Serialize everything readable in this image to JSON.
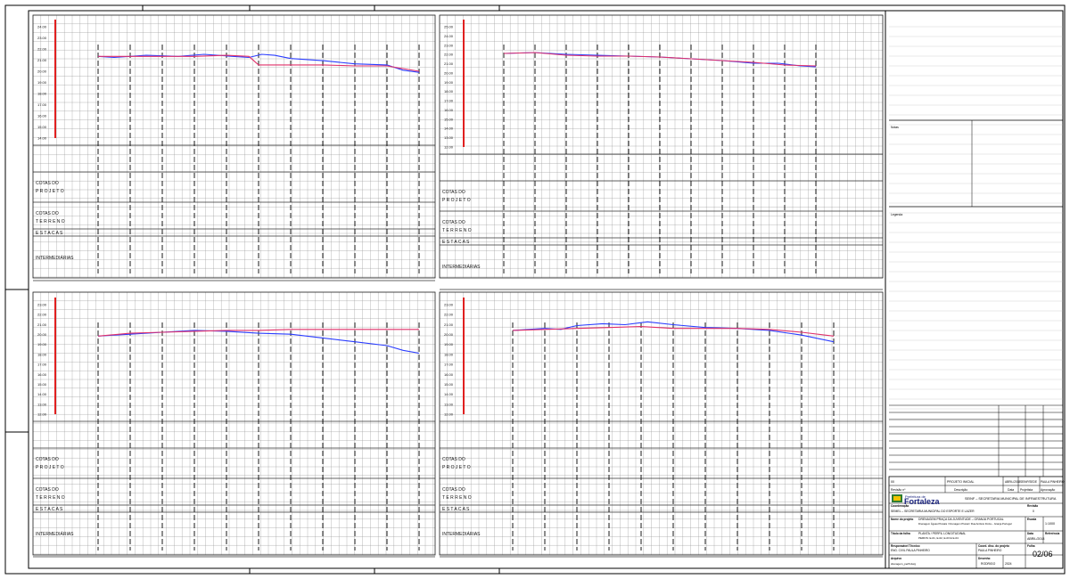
{
  "profile_labels": {
    "cotas_projeto": [
      "COTAS DO",
      "P R O J E T O"
    ],
    "cotas_terreno": [
      "COTAS DO",
      "T E R R E N O"
    ],
    "estacas": "E S T A C A S",
    "intermediarias": "INTERMEDIÁRIAS"
  },
  "elevation_ticks": {
    "top_left": [
      "24.00",
      "23.00",
      "22.00",
      "21.00",
      "20.00",
      "19.00",
      "18.00",
      "17.00",
      "16.00",
      "15.00",
      "14.00"
    ],
    "top_right": [
      "25.00",
      "24.00",
      "23.00",
      "22.00",
      "21.00",
      "20.00",
      "19.00",
      "18.00",
      "17.00",
      "16.00",
      "15.00",
      "14.00",
      "13.00",
      "12.00"
    ],
    "bottom_left": [
      "23.00",
      "22.00",
      "21.00",
      "20.00",
      "19.00",
      "18.00",
      "17.00",
      "16.00",
      "15.00",
      "14.00",
      "13.00",
      "12.00"
    ],
    "bottom_right": [
      "23.00",
      "22.00",
      "21.00",
      "20.00",
      "19.00",
      "18.00",
      "17.00",
      "16.00",
      "15.00",
      "14.00",
      "13.00",
      "12.00"
    ]
  },
  "chart_data": [
    {
      "type": "line",
      "panel": "top_left",
      "ylim": [
        14,
        24.5
      ],
      "series": [
        {
          "color": "#2a3cff",
          "x": [
            0,
            0.05,
            0.15,
            0.25,
            0.33,
            0.42,
            0.47,
            0.51,
            0.55,
            0.6,
            0.7,
            0.8,
            0.9,
            0.95,
            1.0
          ],
          "values": [
            21.7,
            21.6,
            21.8,
            21.7,
            21.9,
            21.7,
            21.6,
            21.9,
            21.8,
            21.5,
            21.3,
            21.0,
            20.9,
            20.4,
            20.2
          ]
        },
        {
          "color": "#e0306a",
          "x": [
            0,
            0.1,
            0.2,
            0.3,
            0.4,
            0.47,
            0.5,
            0.6,
            0.7,
            0.8,
            0.9,
            1.0
          ],
          "values": [
            21.7,
            21.7,
            21.7,
            21.7,
            21.8,
            21.7,
            20.9,
            20.9,
            20.9,
            20.8,
            20.8,
            20.3
          ]
        }
      ]
    },
    {
      "type": "line",
      "panel": "top_right",
      "ylim": [
        12,
        25.5
      ],
      "series": [
        {
          "color": "#2a3cff",
          "x": [
            0,
            0.1,
            0.2,
            0.3,
            0.4,
            0.5,
            0.6,
            0.7,
            0.8,
            0.88,
            0.95,
            1.0
          ],
          "values": [
            22.5,
            22.6,
            22.4,
            22.3,
            22.2,
            22.1,
            21.9,
            21.7,
            21.4,
            21.4,
            21.1,
            21.0
          ]
        },
        {
          "color": "#e0306a",
          "x": [
            0,
            0.1,
            0.2,
            0.3,
            0.4,
            0.5,
            0.6,
            0.7,
            0.8,
            0.9,
            1.0
          ],
          "values": [
            22.5,
            22.6,
            22.3,
            22.2,
            22.2,
            22.1,
            21.9,
            21.7,
            21.5,
            21.2,
            21.1
          ]
        }
      ]
    },
    {
      "type": "line",
      "panel": "bottom_left",
      "ylim": [
        12,
        23.5
      ],
      "series": [
        {
          "color": "#2a3cff",
          "x": [
            0,
            0.1,
            0.2,
            0.3,
            0.4,
            0.5,
            0.6,
            0.7,
            0.8,
            0.9,
            0.95,
            1.0
          ],
          "values": [
            20.2,
            20.4,
            20.6,
            20.8,
            20.7,
            20.5,
            20.4,
            20.0,
            19.6,
            19.2,
            18.7,
            18.4
          ]
        },
        {
          "color": "#e0306a",
          "x": [
            0,
            0.1,
            0.2,
            0.3,
            0.4,
            0.5,
            0.6,
            0.7,
            0.8,
            0.9,
            1.0
          ],
          "values": [
            20.2,
            20.5,
            20.6,
            20.7,
            20.8,
            20.8,
            20.9,
            20.9,
            20.9,
            20.9,
            20.9
          ]
        }
      ]
    },
    {
      "type": "line",
      "panel": "bottom_right",
      "ylim": [
        12,
        23.5
      ],
      "series": [
        {
          "color": "#2a3cff",
          "x": [
            0,
            0.1,
            0.15,
            0.2,
            0.28,
            0.35,
            0.42,
            0.5,
            0.6,
            0.7,
            0.8,
            0.9,
            1.0
          ],
          "values": [
            20.8,
            21.0,
            20.9,
            21.3,
            21.5,
            21.4,
            21.7,
            21.4,
            21.1,
            21.0,
            20.8,
            20.3,
            19.6
          ]
        },
        {
          "color": "#e0306a",
          "x": [
            0,
            0.1,
            0.2,
            0.3,
            0.4,
            0.5,
            0.6,
            0.7,
            0.8,
            0.9,
            1.0
          ],
          "values": [
            20.8,
            20.9,
            21.0,
            21.1,
            21.2,
            21.0,
            21.0,
            21.0,
            20.9,
            20.6,
            20.2
          ]
        }
      ]
    }
  ],
  "title_block": {
    "revisions_header": [
      "Revisão nº",
      "Descrição",
      "Data",
      "Projetista",
      "Aprovação"
    ],
    "revision_row": [
      "00",
      "PROJETO INICIAL",
      "ABRIL/2018",
      "SEINF/SEDE",
      "PAULA PINHEIRO"
    ],
    "org_line": "SEINF – SECRETARIA MUNICIPAL DE INFRAESTRUTURA",
    "logo_small": "Prefeitura de",
    "logo_big": "Fortaleza",
    "coordenacao_label": "Coordenação",
    "coordenacao_value": "SEMEL – SECRETARIA MUNICIPAL DO ESPORTE E LAZER",
    "projeto_label": "Nome do projeto",
    "projeto_value": "DRENAGEM PRAÇA DA JUVENTUDE – GRANJA PORTUGAL",
    "projeto_sub": "Drenagem Águas Pluviais / Drenagem Pluvial / Rua Antônio Fiúza – Granja Portugal",
    "titulo_label": "Título da folha",
    "titulo_value": "PLANTA / PERFIL LONGITUDINAL",
    "titulo_sub": "PERFIS: E-01, E-02, E-03 E E-04",
    "responsavel_label": "Responsável Técnico",
    "responsavel_value": "ENG. CIVIL PAULA PINHEIRO",
    "crea_label": "Coord. disc. do projeto",
    "crea_value": "PAULA PINHEIRO",
    "arquivo_label": "Arquivo",
    "arquivo_value": "drenagem_perfil.dwg",
    "desenho_label": "Desenho",
    "desenho_value": "RODRIGO",
    "escala_label": "Escala",
    "escala_value": "1:1000",
    "data_label": "Data",
    "data_value": "ABRIL/2018",
    "folha_label": "Folha",
    "folha_value": "02/06",
    "revisao_label": "Revisão",
    "revisao_value": "0",
    "referencia_label": "Referência",
    "referencia_value": "2024"
  },
  "side_notes": [
    "Notas",
    "Legenda"
  ]
}
